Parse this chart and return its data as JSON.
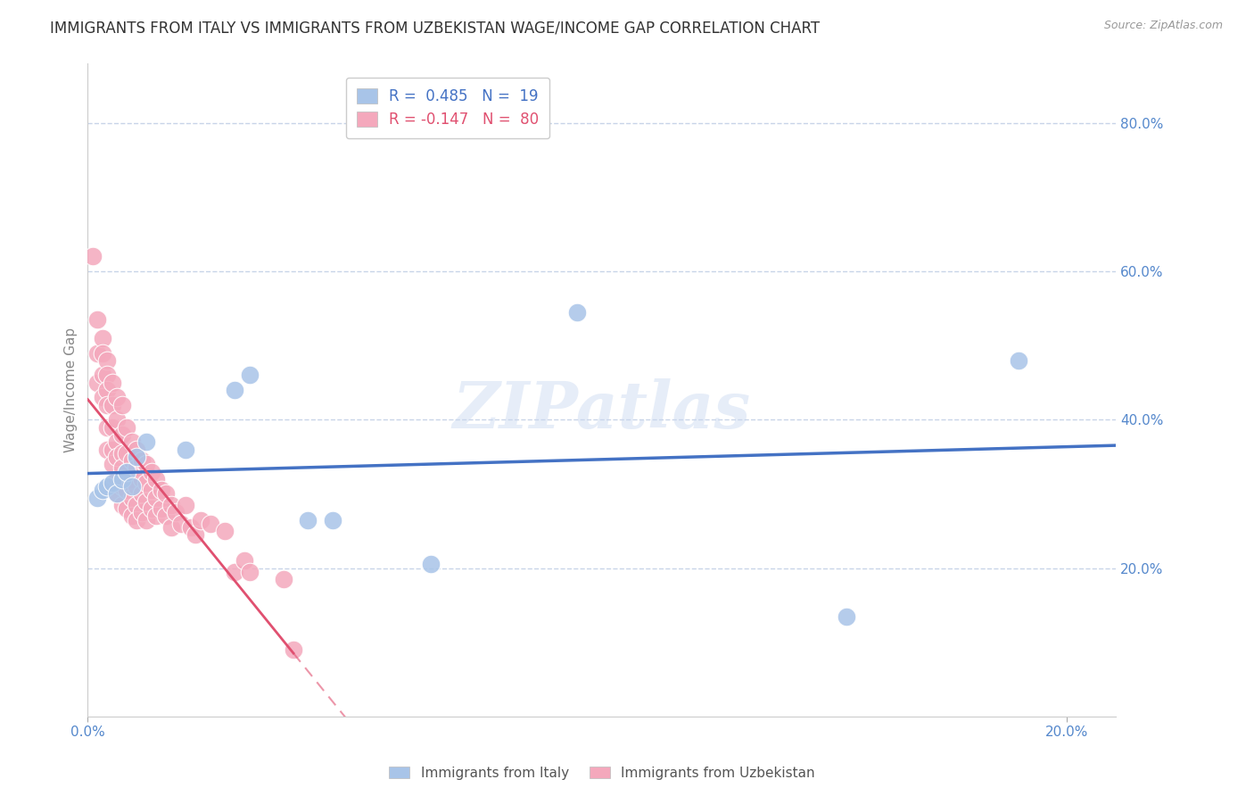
{
  "title": "IMMIGRANTS FROM ITALY VS IMMIGRANTS FROM UZBEKISTAN WAGE/INCOME GAP CORRELATION CHART",
  "source": "Source: ZipAtlas.com",
  "ylabel": "Wage/Income Gap",
  "right_yticks": [
    0.2,
    0.4,
    0.6,
    0.8
  ],
  "right_yticklabels": [
    "20.0%",
    "40.0%",
    "60.0%",
    "80.0%"
  ],
  "watermark": "ZIPatlas",
  "italy_color": "#a8c4e8",
  "uzbekistan_color": "#f4a8bc",
  "italy_line_color": "#4472C4",
  "uzbekistan_line_color": "#e05070",
  "italy_scatter": [
    [
      0.002,
      0.295
    ],
    [
      0.003,
      0.305
    ],
    [
      0.004,
      0.31
    ],
    [
      0.005,
      0.315
    ],
    [
      0.006,
      0.3
    ],
    [
      0.007,
      0.32
    ],
    [
      0.008,
      0.33
    ],
    [
      0.009,
      0.31
    ],
    [
      0.01,
      0.35
    ],
    [
      0.012,
      0.37
    ],
    [
      0.02,
      0.36
    ],
    [
      0.03,
      0.44
    ],
    [
      0.033,
      0.46
    ],
    [
      0.045,
      0.265
    ],
    [
      0.05,
      0.265
    ],
    [
      0.07,
      0.205
    ],
    [
      0.1,
      0.545
    ],
    [
      0.155,
      0.135
    ],
    [
      0.19,
      0.48
    ]
  ],
  "uzbekistan_scatter": [
    [
      0.001,
      0.62
    ],
    [
      0.002,
      0.535
    ],
    [
      0.002,
      0.49
    ],
    [
      0.002,
      0.45
    ],
    [
      0.003,
      0.51
    ],
    [
      0.003,
      0.49
    ],
    [
      0.003,
      0.46
    ],
    [
      0.003,
      0.43
    ],
    [
      0.004,
      0.48
    ],
    [
      0.004,
      0.46
    ],
    [
      0.004,
      0.44
    ],
    [
      0.004,
      0.42
    ],
    [
      0.004,
      0.39
    ],
    [
      0.004,
      0.36
    ],
    [
      0.005,
      0.45
    ],
    [
      0.005,
      0.42
    ],
    [
      0.005,
      0.39
    ],
    [
      0.005,
      0.36
    ],
    [
      0.005,
      0.34
    ],
    [
      0.005,
      0.31
    ],
    [
      0.006,
      0.43
    ],
    [
      0.006,
      0.4
    ],
    [
      0.006,
      0.37
    ],
    [
      0.006,
      0.35
    ],
    [
      0.006,
      0.32
    ],
    [
      0.006,
      0.3
    ],
    [
      0.007,
      0.42
    ],
    [
      0.007,
      0.38
    ],
    [
      0.007,
      0.355
    ],
    [
      0.007,
      0.335
    ],
    [
      0.007,
      0.31
    ],
    [
      0.007,
      0.285
    ],
    [
      0.008,
      0.39
    ],
    [
      0.008,
      0.355
    ],
    [
      0.008,
      0.33
    ],
    [
      0.008,
      0.305
    ],
    [
      0.008,
      0.28
    ],
    [
      0.009,
      0.37
    ],
    [
      0.009,
      0.345
    ],
    [
      0.009,
      0.32
    ],
    [
      0.009,
      0.295
    ],
    [
      0.009,
      0.27
    ],
    [
      0.01,
      0.36
    ],
    [
      0.01,
      0.335
    ],
    [
      0.01,
      0.31
    ],
    [
      0.01,
      0.285
    ],
    [
      0.01,
      0.265
    ],
    [
      0.011,
      0.345
    ],
    [
      0.011,
      0.32
    ],
    [
      0.011,
      0.3
    ],
    [
      0.011,
      0.275
    ],
    [
      0.012,
      0.34
    ],
    [
      0.012,
      0.315
    ],
    [
      0.012,
      0.29
    ],
    [
      0.012,
      0.265
    ],
    [
      0.013,
      0.33
    ],
    [
      0.013,
      0.305
    ],
    [
      0.013,
      0.28
    ],
    [
      0.014,
      0.32
    ],
    [
      0.014,
      0.295
    ],
    [
      0.014,
      0.27
    ],
    [
      0.015,
      0.305
    ],
    [
      0.015,
      0.28
    ],
    [
      0.016,
      0.3
    ],
    [
      0.016,
      0.27
    ],
    [
      0.017,
      0.285
    ],
    [
      0.017,
      0.255
    ],
    [
      0.018,
      0.275
    ],
    [
      0.019,
      0.26
    ],
    [
      0.02,
      0.285
    ],
    [
      0.021,
      0.255
    ],
    [
      0.022,
      0.245
    ],
    [
      0.023,
      0.265
    ],
    [
      0.025,
      0.26
    ],
    [
      0.028,
      0.25
    ],
    [
      0.03,
      0.195
    ],
    [
      0.032,
      0.21
    ],
    [
      0.033,
      0.195
    ],
    [
      0.04,
      0.185
    ],
    [
      0.042,
      0.09
    ]
  ],
  "xlim": [
    0.0,
    0.21
  ],
  "ylim": [
    0.0,
    0.88
  ],
  "background_color": "#ffffff",
  "grid_color": "#c8d4e8",
  "title_fontsize": 12,
  "tick_label_color": "#5588cc"
}
